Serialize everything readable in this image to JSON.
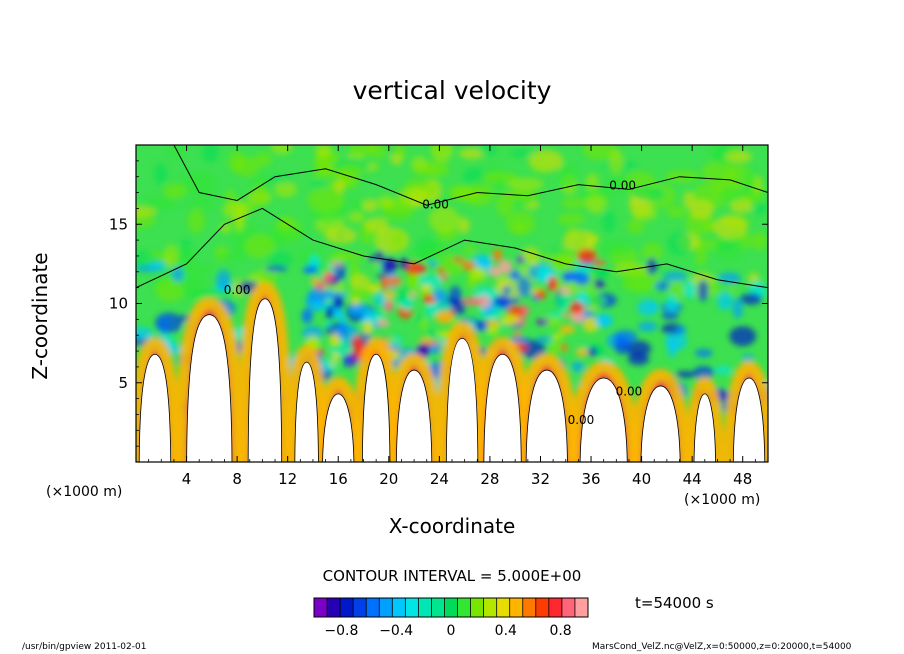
{
  "title": "vertical velocity",
  "xlabel": "X-coordinate",
  "ylabel": "Z-coordinate",
  "x_unit": "(×1000 m)",
  "y_unit": "(×1000 m)",
  "contour_interval": "CONTOUR INTERVAL = 5.000E+00",
  "time_label": "t=54000 s",
  "footer_left": "/usr/bin/gpview   2011-02-01",
  "footer_right": "MarsCond_VelZ.nc@VelZ,x=0:50000,z=0:20000,t=54000",
  "chart_data": {
    "type": "heatmap",
    "title": "vertical velocity",
    "xlabel": "X-coordinate",
    "ylabel": "Z-coordinate",
    "xlim": [
      0,
      50
    ],
    "ylim": [
      0,
      20
    ],
    "x_ticks": [
      "4",
      "8",
      "12",
      "16",
      "20",
      "24",
      "28",
      "32",
      "36",
      "40",
      "44",
      "48"
    ],
    "x_tick_values": [
      4,
      8,
      12,
      16,
      20,
      24,
      28,
      32,
      36,
      40,
      44,
      48
    ],
    "y_ticks": [
      "5",
      "10",
      "15"
    ],
    "y_tick_values": [
      5,
      10,
      15
    ],
    "contour_labels": [
      {
        "text": "0.00",
        "x": 8.0,
        "y": 10.6
      },
      {
        "text": "0.00",
        "x": 23.7,
        "y": 16.0
      },
      {
        "text": "0.00",
        "x": 38.5,
        "y": 17.2
      },
      {
        "text": "0.00",
        "x": 35.2,
        "y": 2.4
      },
      {
        "text": "0.00",
        "x": 39.0,
        "y": 4.2
      }
    ],
    "colorbar": {
      "levels": [
        -1.0,
        -0.9,
        -0.8,
        -0.7,
        -0.6,
        -0.5,
        -0.4,
        -0.3,
        -0.2,
        -0.1,
        0.0,
        0.1,
        0.2,
        0.3,
        0.4,
        0.5,
        0.6,
        0.7,
        0.8,
        0.9,
        1.0
      ],
      "tick_labels": [
        "−0.8",
        "−0.4",
        "0",
        "0.4",
        "0.8"
      ],
      "tick_values": [
        -0.8,
        -0.4,
        0.0,
        0.4,
        0.8
      ],
      "colors": [
        "#7a00c8",
        "#2800b4",
        "#0018c8",
        "#0040e6",
        "#0070ff",
        "#00a0ff",
        "#00c8ff",
        "#00e6e6",
        "#00e6b4",
        "#00e68c",
        "#00dc5a",
        "#32e632",
        "#78e600",
        "#b4e600",
        "#e6dc00",
        "#ffb400",
        "#ff7800",
        "#ff3c00",
        "#ff2830",
        "#ff6478",
        "#ffa0a0"
      ],
      "saturation_color": "#ffffff"
    }
  }
}
